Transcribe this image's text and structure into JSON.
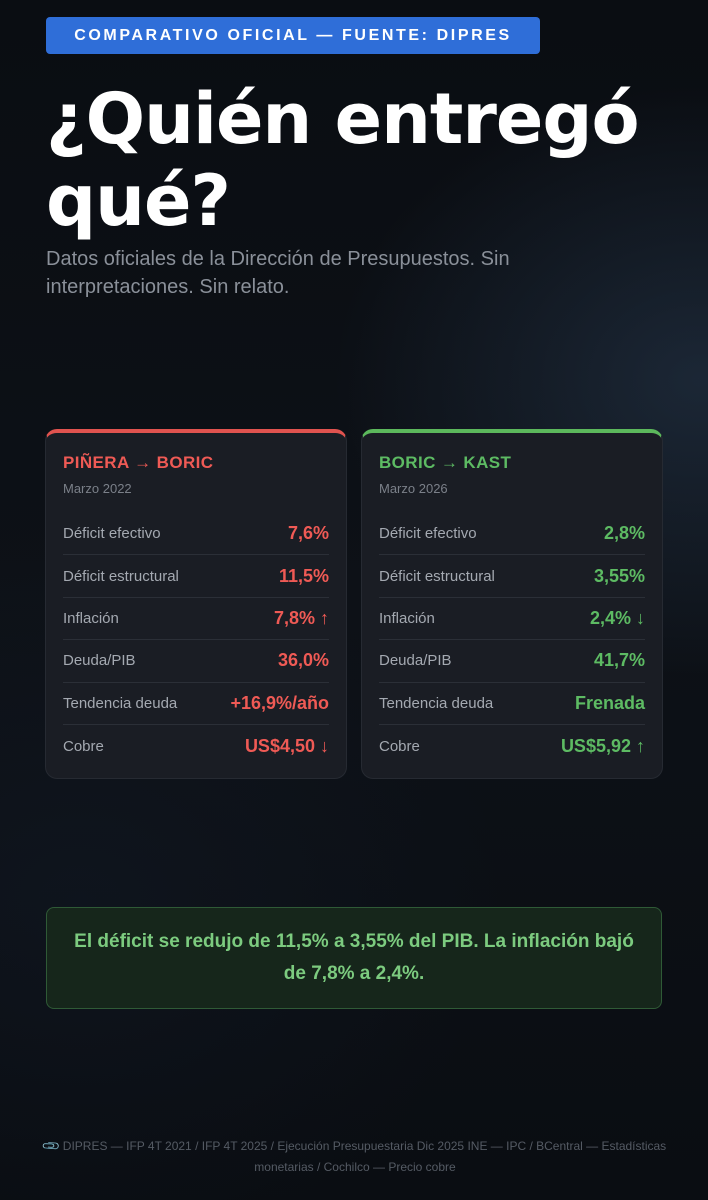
{
  "badge": "COMPARATIVO OFICIAL — FUENTE: DIPRES",
  "title": "¿Quién entregó qué?",
  "subtitle": "Datos oficiales de la Dirección de Presupuestos. Sin interpretaciones. Sin relato.",
  "colors": {
    "badge_bg": "#2f6ed8",
    "red_accent": "#ef5a55",
    "green_accent": "#5dbb63",
    "card_bg": "#1a1d24",
    "summary_bg": "#16261b"
  },
  "cards": [
    {
      "title": "PIÑERA → BORIC",
      "date": "Marzo 2022",
      "rows": [
        {
          "label": "Déficit efectivo",
          "value": "7,6%"
        },
        {
          "label": "Déficit estructural",
          "value": "11,5%"
        },
        {
          "label": "Inflación",
          "value": "7,8% ↑"
        },
        {
          "label": "Deuda/PIB",
          "value": "36,0%"
        },
        {
          "label": "Tendencia deuda",
          "value": "+16,9%/año"
        },
        {
          "label": "Cobre",
          "value": "US$4,50 ↓"
        }
      ]
    },
    {
      "title": "BORIC → KAST",
      "date": "Marzo 2026",
      "rows": [
        {
          "label": "Déficit efectivo",
          "value": "2,8%"
        },
        {
          "label": "Déficit estructural",
          "value": "3,55%"
        },
        {
          "label": "Inflación",
          "value": "2,4% ↓"
        },
        {
          "label": "Deuda/PIB",
          "value": "41,7%"
        },
        {
          "label": "Tendencia deuda",
          "value": "Frenada"
        },
        {
          "label": "Cobre",
          "value": "US$5,92 ↑"
        }
      ]
    }
  ],
  "summary": "El déficit se redujo de 11,5% a 3,55% del PIB. La inflación bajó de 7,8% a 2,4%.",
  "footer": {
    "icon": "paperclip-icon",
    "text": "DIPRES — IFP 4T 2021 / IFP 4T 2025 / Ejecución Presupuestaria Dic 2025 INE — IPC / BCentral — Estadísticas monetarias / Cochilco — Precio cobre"
  }
}
